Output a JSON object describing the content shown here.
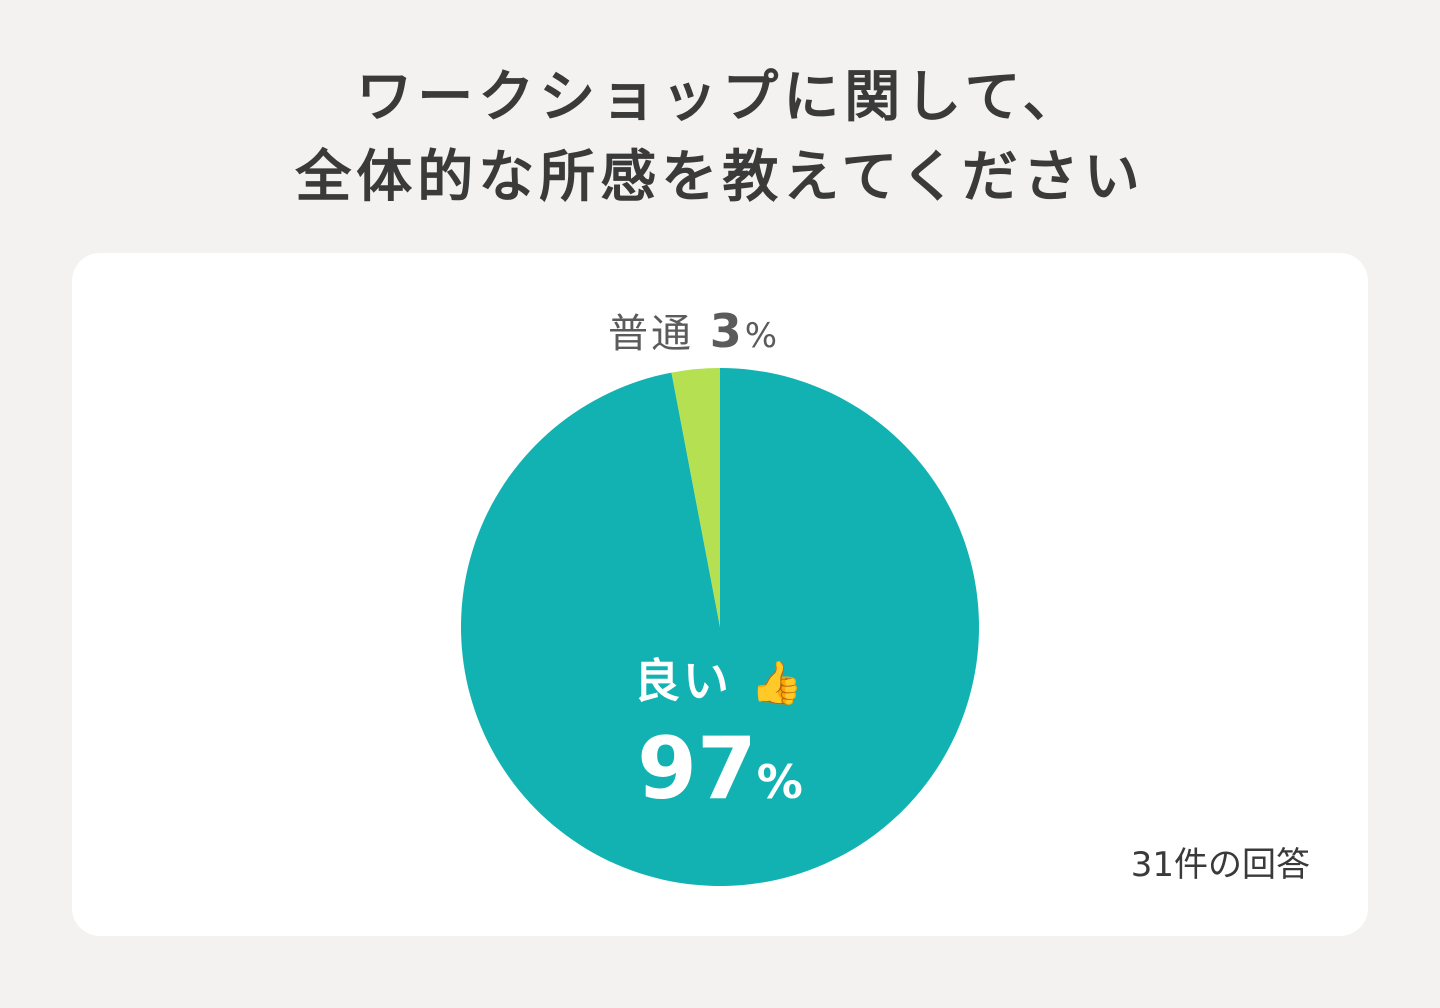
{
  "title_line1": "ワークショップに関して、",
  "title_line2": "全体的な所感を教えてください",
  "response_count": "31件の回答",
  "colors": {
    "good": "#12b2b2",
    "neutral": "#b4e052",
    "background": "#f3f2f0",
    "card": "#ffffff"
  },
  "chart_data": {
    "type": "pie",
    "title": "ワークショップに関して、全体的な所感を教えてください",
    "slices": [
      {
        "label": "良い",
        "value": 97,
        "color": "#12b2b2"
      },
      {
        "label": "普通",
        "value": 3,
        "color": "#b4e052"
      }
    ]
  },
  "labels": {
    "good_name": "良い",
    "good_emoji": "👍",
    "good_value": "97",
    "neutral_name": "普通",
    "neutral_value": "3",
    "percent": "%"
  }
}
